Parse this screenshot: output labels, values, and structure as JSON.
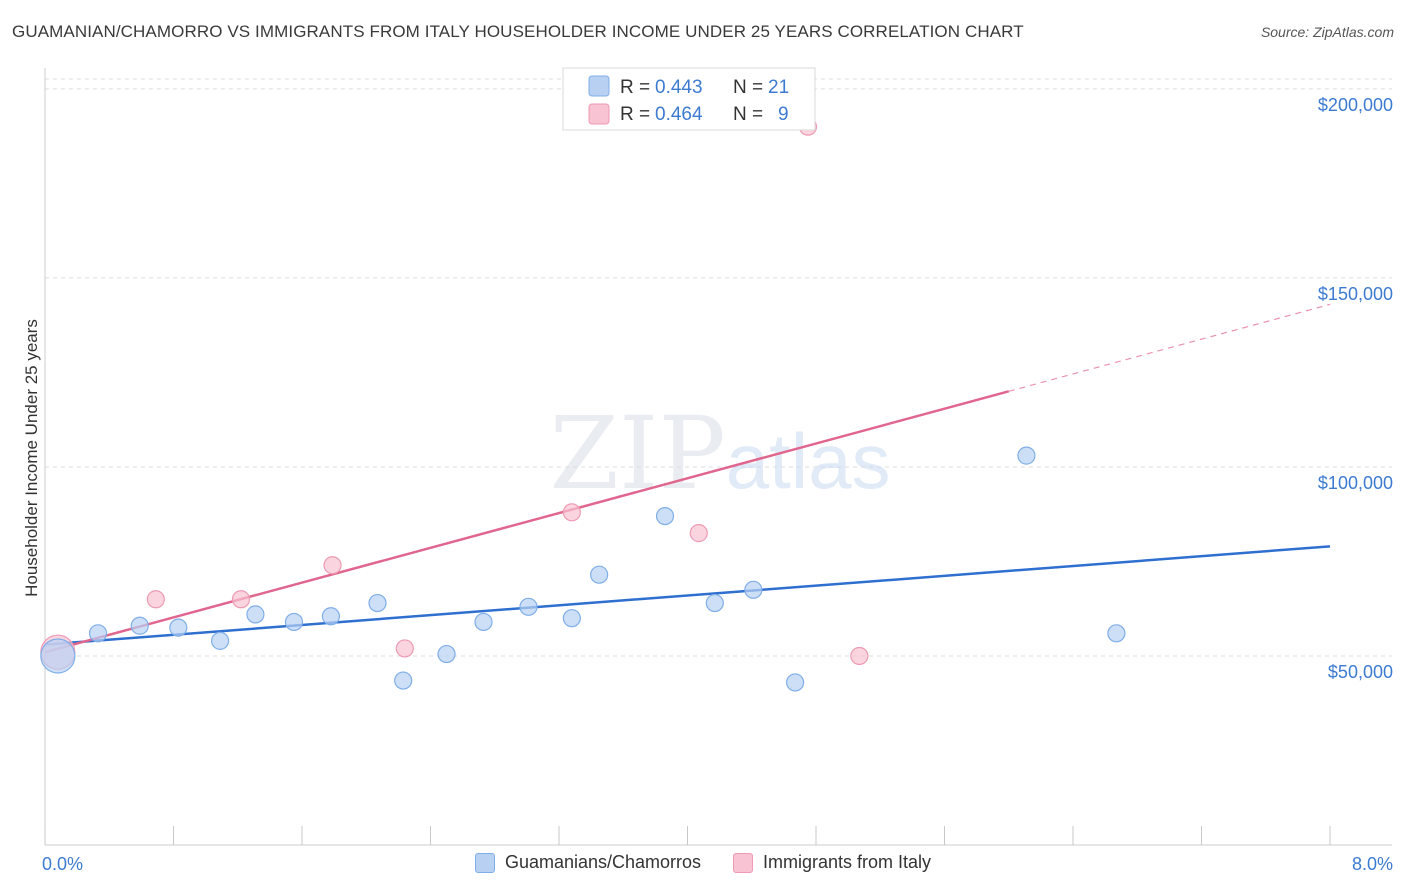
{
  "header": {
    "title": "GUAMANIAN/CHAMORRO VS IMMIGRANTS FROM ITALY HOUSEHOLDER INCOME UNDER 25 YEARS CORRELATION CHART",
    "source": "Source: ZipAtlas.com"
  },
  "watermark": "ZIPatlas",
  "colors": {
    "blue_fill": "#b8d1f3",
    "blue_stroke": "#7faee8",
    "blue_line": "#2f6fd0",
    "pink_fill": "#f8c3d3",
    "pink_stroke": "#ee9ab4",
    "pink_line": "#e0668e",
    "tick_text": "#3d7bd1",
    "grid": "#dddddd"
  },
  "legend": {
    "r_label": "R = ",
    "n_label": "N = ",
    "series": [
      {
        "r": "0.443",
        "n": "21"
      },
      {
        "r": "0.464",
        "n": "9"
      }
    ]
  },
  "chart_data": {
    "type": "scatter",
    "title": "GUAMANIAN/CHAMORRO VS IMMIGRANTS FROM ITALY HOUSEHOLDER INCOME UNDER 25 YEARS CORRELATION CHART",
    "xlabel": "",
    "ylabel": "Householder Income Under 25 years",
    "xlim": [
      0,
      8
    ],
    "ylim": [
      0,
      205000
    ],
    "x_tick_labels": [
      "0.0%",
      "8.0%"
    ],
    "y_ticks": [
      50000,
      100000,
      150000,
      200000
    ],
    "y_tick_labels": [
      "$50,000",
      "$100,000",
      "$150,000",
      "$200,000"
    ],
    "grid": true,
    "series": [
      {
        "name": "Guamanians/Chamorros",
        "color": "#b8d1f3",
        "points": [
          {
            "x": 0.08,
            "y": 50000,
            "size": "large"
          },
          {
            "x": 0.33,
            "y": 56000
          },
          {
            "x": 0.59,
            "y": 58000
          },
          {
            "x": 0.83,
            "y": 57500
          },
          {
            "x": 1.09,
            "y": 54000
          },
          {
            "x": 1.31,
            "y": 61000
          },
          {
            "x": 1.55,
            "y": 59000
          },
          {
            "x": 1.78,
            "y": 60500
          },
          {
            "x": 2.07,
            "y": 64000
          },
          {
            "x": 2.23,
            "y": 43500
          },
          {
            "x": 2.5,
            "y": 50500
          },
          {
            "x": 2.73,
            "y": 59000
          },
          {
            "x": 3.01,
            "y": 63000
          },
          {
            "x": 3.28,
            "y": 60000
          },
          {
            "x": 3.45,
            "y": 71500
          },
          {
            "x": 3.86,
            "y": 87000
          },
          {
            "x": 4.17,
            "y": 64000
          },
          {
            "x": 4.41,
            "y": 67500
          },
          {
            "x": 4.67,
            "y": 43000
          },
          {
            "x": 6.11,
            "y": 103000
          },
          {
            "x": 6.67,
            "y": 56000
          }
        ],
        "trend": {
          "x_start": 0,
          "y_start": 53000,
          "x_end": 8,
          "y_end": 79000
        }
      },
      {
        "name": "Immigrants from Italy",
        "color": "#f8c3d3",
        "points": [
          {
            "x": 0.08,
            "y": 51000,
            "size": "large"
          },
          {
            "x": 0.69,
            "y": 65000
          },
          {
            "x": 1.22,
            "y": 65000
          },
          {
            "x": 1.79,
            "y": 74000
          },
          {
            "x": 2.24,
            "y": 52000
          },
          {
            "x": 3.28,
            "y": 88000
          },
          {
            "x": 4.07,
            "y": 82500
          },
          {
            "x": 4.75,
            "y": 190000
          },
          {
            "x": 5.07,
            "y": 50000
          }
        ],
        "trend": {
          "x_start": 0,
          "y_start": 51000,
          "x_end": 6.0,
          "y_end": 120000,
          "x_dash_end": 8,
          "y_dash_end": 143000
        }
      }
    ]
  }
}
